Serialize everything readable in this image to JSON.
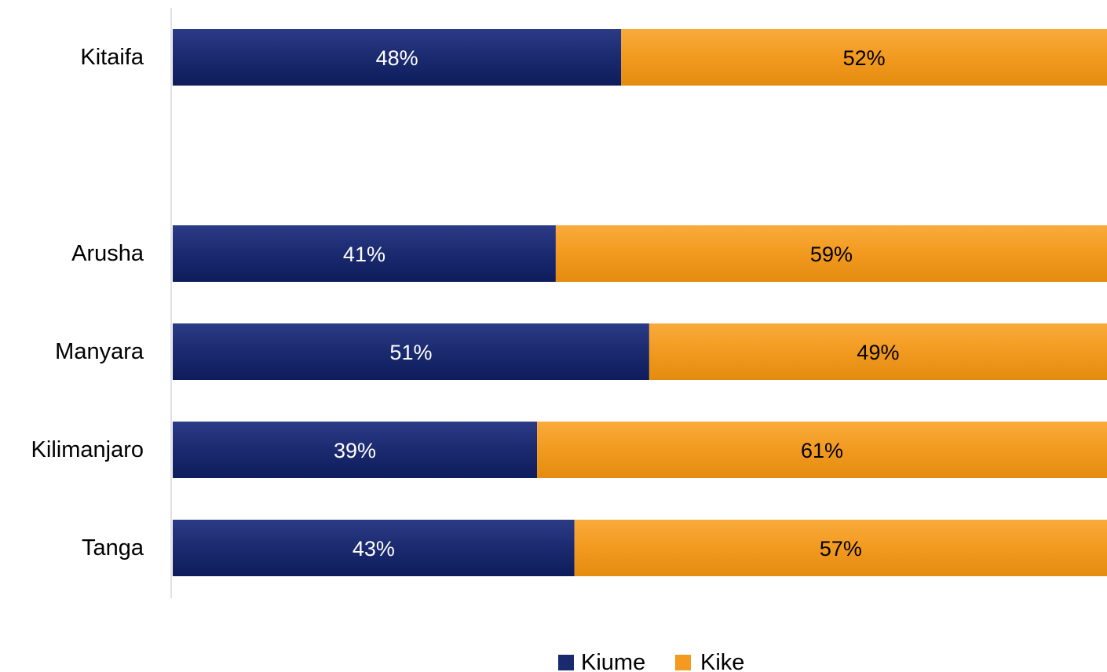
{
  "chart_data": {
    "type": "bar",
    "orientation": "horizontal",
    "stacked": true,
    "percent": true,
    "categories": [
      "Kitaifa",
      "",
      "Arusha",
      "Manyara",
      "Kilimanjaro",
      "Tanga"
    ],
    "series": [
      {
        "name": "Kiume",
        "color": "#1a2a6e",
        "values": [
          48,
          null,
          41,
          51,
          39,
          43
        ],
        "labels": [
          "48%",
          "",
          "41%",
          "51%",
          "39%",
          "43%"
        ]
      },
      {
        "name": "Kike",
        "color": "#f39a1f",
        "values": [
          52,
          null,
          59,
          49,
          61,
          57
        ],
        "labels": [
          "52%",
          "",
          "59%",
          "49%",
          "61%",
          "57%"
        ]
      }
    ],
    "xlim": [
      0,
      100
    ],
    "grid": false,
    "legend_position": "bottom"
  }
}
